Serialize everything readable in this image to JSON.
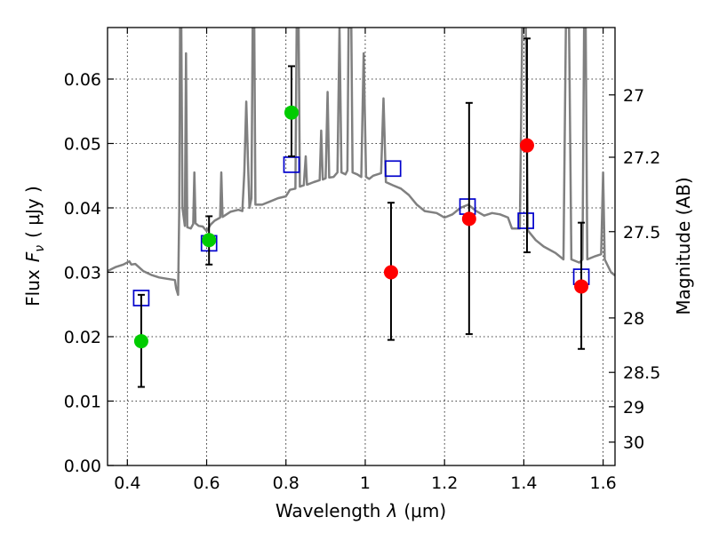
{
  "chart_data": {
    "type": "scatter",
    "xlabel": "Wavelength",
    "xlabel_symbol": "λ",
    "xlabel_unit": "(μm)",
    "ylabel": "Flux",
    "ylabel_symbol": "F",
    "ylabel_subscript": "ν",
    "ylabel_unit": "( μJy )",
    "ylabel_right": "Magnitude (AB)",
    "xlim": [
      0.35,
      1.63
    ],
    "ylim": [
      0.0,
      0.068
    ],
    "grid": true,
    "x_ticks": [
      0.4,
      0.6,
      0.8,
      1.0,
      1.2,
      1.4,
      1.6
    ],
    "x_tick_labels": [
      "0.4",
      "0.6",
      "0.8",
      "1",
      "1.2",
      "1.4",
      "1.6"
    ],
    "y_ticks": [
      0.0,
      0.01,
      0.02,
      0.03,
      0.04,
      0.05,
      0.06
    ],
    "y_tick_labels": [
      "0.00",
      "0.01",
      "0.02",
      "0.03",
      "0.04",
      "0.05",
      "0.06"
    ],
    "right_ticks": [
      {
        "label": "27",
        "value": 27.0
      },
      {
        "label": "27.2",
        "value": 27.2
      },
      {
        "label": "27.5",
        "value": 27.5
      },
      {
        "label": "28",
        "value": 28.0
      },
      {
        "label": "28.5",
        "value": 28.5
      },
      {
        "label": "29",
        "value": 29.0
      },
      {
        "label": "30",
        "value": 30.0
      }
    ],
    "colors": {
      "spectrum": "#808080",
      "green": "#00cc00",
      "red": "#ff0000",
      "square": "#0000cc",
      "errorbar": "#000000"
    },
    "series": [
      {
        "kind": "measurement",
        "points": [
          {
            "x": 0.435,
            "y": 0.0193,
            "err_lo": 0.0122,
            "err_hi": 0.0265,
            "color": "green"
          },
          {
            "x": 0.606,
            "y": 0.035,
            "err_lo": 0.0312,
            "err_hi": 0.0387,
            "color": "green"
          },
          {
            "x": 0.814,
            "y": 0.0548,
            "err_lo": 0.048,
            "err_hi": 0.062,
            "color": "green"
          },
          {
            "x": 1.065,
            "y": 0.03,
            "err_lo": 0.0195,
            "err_hi": 0.0408,
            "color": "red"
          },
          {
            "x": 1.262,
            "y": 0.0383,
            "err_lo": 0.0204,
            "err_hi": 0.0563,
            "color": "red"
          },
          {
            "x": 1.408,
            "y": 0.0497,
            "err_lo": 0.0331,
            "err_hi": 0.0663,
            "color": "red"
          },
          {
            "x": 1.545,
            "y": 0.0278,
            "err_lo": 0.0181,
            "err_hi": 0.0377,
            "color": "red"
          }
        ]
      },
      {
        "kind": "model_band_flux",
        "points": [
          {
            "x": 0.435,
            "y": 0.026
          },
          {
            "x": 0.606,
            "y": 0.0345
          },
          {
            "x": 0.814,
            "y": 0.0467
          },
          {
            "x": 1.07,
            "y": 0.0461
          },
          {
            "x": 1.258,
            "y": 0.0402
          },
          {
            "x": 1.405,
            "y": 0.038
          },
          {
            "x": 1.545,
            "y": 0.0293
          }
        ]
      },
      {
        "kind": "model_spectrum",
        "points": [
          [
            0.35,
            0.0302
          ],
          [
            0.37,
            0.0308
          ],
          [
            0.39,
            0.0312
          ],
          [
            0.405,
            0.0317
          ],
          [
            0.41,
            0.0312
          ],
          [
            0.42,
            0.0313
          ],
          [
            0.44,
            0.0302
          ],
          [
            0.46,
            0.0296
          ],
          [
            0.48,
            0.0292
          ],
          [
            0.5,
            0.029
          ],
          [
            0.52,
            0.0288
          ],
          [
            0.523,
            0.0275
          ],
          [
            0.528,
            0.0265
          ],
          [
            0.531,
            0.04
          ],
          [
            0.533,
            0.068
          ],
          [
            0.536,
            0.068
          ],
          [
            0.539,
            0.04
          ],
          [
            0.545,
            0.0372
          ],
          [
            0.548,
            0.064
          ],
          [
            0.551,
            0.037
          ],
          [
            0.56,
            0.0368
          ],
          [
            0.566,
            0.0375
          ],
          [
            0.569,
            0.0455
          ],
          [
            0.572,
            0.0376
          ],
          [
            0.58,
            0.0372
          ],
          [
            0.59,
            0.0371
          ],
          [
            0.6,
            0.0364
          ],
          [
            0.61,
            0.0374
          ],
          [
            0.62,
            0.038
          ],
          [
            0.634,
            0.0385
          ],
          [
            0.637,
            0.0455
          ],
          [
            0.64,
            0.0386
          ],
          [
            0.66,
            0.0394
          ],
          [
            0.68,
            0.0397
          ],
          [
            0.69,
            0.0395
          ],
          [
            0.695,
            0.0455
          ],
          [
            0.7,
            0.0565
          ],
          [
            0.705,
            0.0455
          ],
          [
            0.708,
            0.04
          ],
          [
            0.713,
            0.0415
          ],
          [
            0.716,
            0.068
          ],
          [
            0.72,
            0.068
          ],
          [
            0.723,
            0.0405
          ],
          [
            0.74,
            0.0405
          ],
          [
            0.76,
            0.041
          ],
          [
            0.78,
            0.0415
          ],
          [
            0.8,
            0.0418
          ],
          [
            0.81,
            0.0428
          ],
          [
            0.824,
            0.043
          ],
          [
            0.827,
            0.068
          ],
          [
            0.832,
            0.068
          ],
          [
            0.835,
            0.0433
          ],
          [
            0.845,
            0.0435
          ],
          [
            0.85,
            0.048
          ],
          [
            0.853,
            0.0436
          ],
          [
            0.87,
            0.044
          ],
          [
            0.885,
            0.0443
          ],
          [
            0.889,
            0.052
          ],
          [
            0.893,
            0.0444
          ],
          [
            0.9,
            0.0446
          ],
          [
            0.905,
            0.058
          ],
          [
            0.909,
            0.0447
          ],
          [
            0.92,
            0.0448
          ],
          [
            0.93,
            0.0455
          ],
          [
            0.935,
            0.068
          ],
          [
            0.94,
            0.0455
          ],
          [
            0.95,
            0.0452
          ],
          [
            0.955,
            0.0458
          ],
          [
            0.958,
            0.068
          ],
          [
            0.965,
            0.068
          ],
          [
            0.968,
            0.0455
          ],
          [
            0.98,
            0.0452
          ],
          [
            0.99,
            0.0448
          ],
          [
            0.996,
            0.064
          ],
          [
            1.002,
            0.0448
          ],
          [
            1.01,
            0.0445
          ],
          [
            1.02,
            0.045
          ],
          [
            1.04,
            0.0454
          ],
          [
            1.046,
            0.057
          ],
          [
            1.052,
            0.044
          ],
          [
            1.07,
            0.0435
          ],
          [
            1.09,
            0.043
          ],
          [
            1.11,
            0.042
          ],
          [
            1.13,
            0.0405
          ],
          [
            1.15,
            0.0395
          ],
          [
            1.18,
            0.0392
          ],
          [
            1.2,
            0.0385
          ],
          [
            1.22,
            0.039
          ],
          [
            1.24,
            0.04
          ],
          [
            1.26,
            0.0405
          ],
          [
            1.28,
            0.0395
          ],
          [
            1.3,
            0.0388
          ],
          [
            1.32,
            0.0392
          ],
          [
            1.34,
            0.039
          ],
          [
            1.36,
            0.0385
          ],
          [
            1.37,
            0.0368
          ],
          [
            1.385,
            0.0368
          ],
          [
            1.39,
            0.0368
          ],
          [
            1.396,
            0.068
          ],
          [
            1.405,
            0.068
          ],
          [
            1.41,
            0.0365
          ],
          [
            1.43,
            0.035
          ],
          [
            1.45,
            0.034
          ],
          [
            1.48,
            0.033
          ],
          [
            1.5,
            0.032
          ],
          [
            1.506,
            0.068
          ],
          [
            1.514,
            0.068
          ],
          [
            1.52,
            0.032
          ],
          [
            1.54,
            0.0315
          ],
          [
            1.548,
            0.032
          ],
          [
            1.552,
            0.068
          ],
          [
            1.556,
            0.068
          ],
          [
            1.56,
            0.032
          ],
          [
            1.58,
            0.0325
          ],
          [
            1.595,
            0.0328
          ],
          [
            1.6,
            0.0455
          ],
          [
            1.604,
            0.032
          ],
          [
            1.62,
            0.03
          ],
          [
            1.63,
            0.0295
          ]
        ]
      }
    ]
  }
}
